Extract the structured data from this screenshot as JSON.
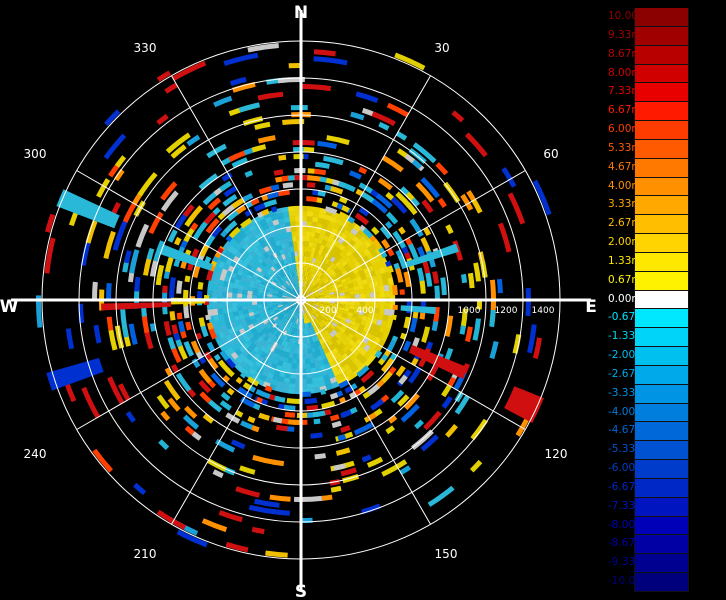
{
  "chart_data": {
    "type": "polar-heatmap",
    "cardinals": {
      "north": "N",
      "east": "E",
      "south": "S",
      "west": "W"
    },
    "azimuth_labels": [
      "30",
      "60",
      "120",
      "150",
      "210",
      "240",
      "300",
      "330"
    ],
    "range_labels": [
      "200",
      "400",
      "1000",
      "1200",
      "1400"
    ],
    "legend": {
      "labels": [
        "10.00m/s",
        "9.33m/s",
        "8.67m/s",
        "8.00m/s",
        "7.33m/s",
        "6.67m/s",
        "6.00m/s",
        "5.33m/s",
        "4.67m/s",
        "4.00m/s",
        "3.33m/s",
        "2.67m/s",
        "2.00m/s",
        "1.33m/s",
        "0.67m/s",
        "0.00m/s",
        "-0.67m/s",
        "-1.33m/s",
        "-2.00m/s",
        "-2.67m/s",
        "-3.33m/s",
        "-4.00m/s",
        "-4.67m/s",
        "-5.33m/s",
        "-6.00m/s",
        "-6.67m/s",
        "-7.33m/s",
        "-8.00m/s",
        "-8.67m/s",
        "-9.33m/s",
        "-10.00m/s"
      ],
      "colors": [
        "#8b0000",
        "#a00000",
        "#b80000",
        "#d00000",
        "#e80000",
        "#ff1a00",
        "#ff3c00",
        "#ff5a00",
        "#ff7800",
        "#ff9000",
        "#ffa800",
        "#ffbe00",
        "#ffd400",
        "#ffe800",
        "#fff200",
        "#ffffff",
        "#00e8ff",
        "#00d4f8",
        "#00c0f0",
        "#00aaea",
        "#0094e4",
        "#007ede",
        "#0068d8",
        "#0052d2",
        "#003ccc",
        "#0028c6",
        "#0014c0",
        "#0000b8",
        "#0000a4",
        "#000090",
        "#00007c"
      ],
      "label_colors": [
        "#8b0000",
        "#a00000",
        "#b80000",
        "#d00000",
        "#e80000",
        "#ff1a00",
        "#ff3c00",
        "#ff5a00",
        "#ff7800",
        "#ff9000",
        "#ffa800",
        "#ffbe00",
        "#ffd400",
        "#ffe800",
        "#fff200",
        "#ffffff",
        "#00e8ff",
        "#00d4f8",
        "#00c0f0",
        "#00aaea",
        "#0094e4",
        "#007ede",
        "#0068d8",
        "#0052d2",
        "#003ccc",
        "#0028c6",
        "#0014c0",
        "#0000b8",
        "#0000a4",
        "#000090",
        "#00007c"
      ]
    }
  }
}
